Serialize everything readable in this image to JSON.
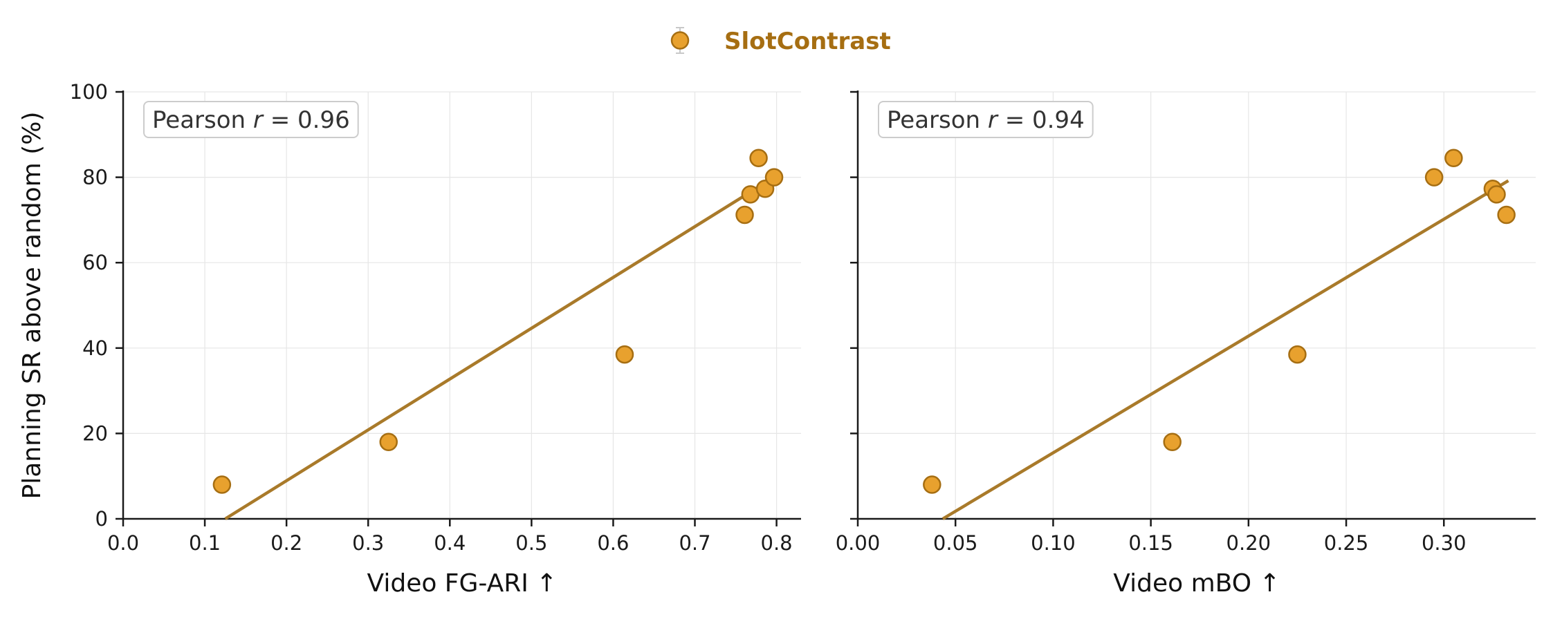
{
  "chart_data": {
    "type": "scatter",
    "legend": {
      "label": "SlotContrast",
      "position": "top-center"
    },
    "colors": {
      "marker_fill": "#E8A12E",
      "marker_edge": "#A66E12",
      "fit_line": "#A97A2A",
      "legend_text": "#A66E12"
    },
    "ylabel": "Planning SR above random (%)",
    "ylim": [
      0,
      100
    ],
    "yticks": [
      "0",
      "20",
      "40",
      "60",
      "80",
      "100"
    ],
    "grid": true,
    "panels": [
      {
        "xlabel": "Video FG-ARI ↑",
        "xlim": [
          0.0,
          0.83
        ],
        "xticks": [
          "0.0",
          "0.1",
          "0.2",
          "0.3",
          "0.4",
          "0.5",
          "0.6",
          "0.7",
          "0.8"
        ],
        "annotation": {
          "prefix": "Pearson ",
          "var": "r",
          "suffix": " = 0.96"
        },
        "points": [
          {
            "x": 0.121,
            "y": 8
          },
          {
            "x": 0.325,
            "y": 18
          },
          {
            "x": 0.614,
            "y": 38.5
          },
          {
            "x": 0.761,
            "y": 71.2
          },
          {
            "x": 0.768,
            "y": 76
          },
          {
            "x": 0.778,
            "y": 84.5
          },
          {
            "x": 0.786,
            "y": 77.3
          },
          {
            "x": 0.797,
            "y": 80
          }
        ],
        "fit": [
          [
            0.125,
            0
          ],
          [
            0.797,
            80
          ]
        ]
      },
      {
        "xlabel": "Video mBO ↑",
        "xlim": [
          0.0,
          0.347
        ],
        "xticks": [
          "0.00",
          "0.05",
          "0.10",
          "0.15",
          "0.20",
          "0.25",
          "0.30"
        ],
        "annotation": {
          "prefix": "Pearson ",
          "var": "r",
          "suffix": " = 0.94"
        },
        "points": [
          {
            "x": 0.038,
            "y": 8
          },
          {
            "x": 0.161,
            "y": 18
          },
          {
            "x": 0.225,
            "y": 38.5
          },
          {
            "x": 0.295,
            "y": 80
          },
          {
            "x": 0.305,
            "y": 84.5
          },
          {
            "x": 0.325,
            "y": 77.3
          },
          {
            "x": 0.327,
            "y": 76
          },
          {
            "x": 0.332,
            "y": 71.2
          }
        ],
        "fit": [
          [
            0.0435,
            0
          ],
          [
            0.333,
            79.2
          ]
        ]
      }
    ]
  }
}
